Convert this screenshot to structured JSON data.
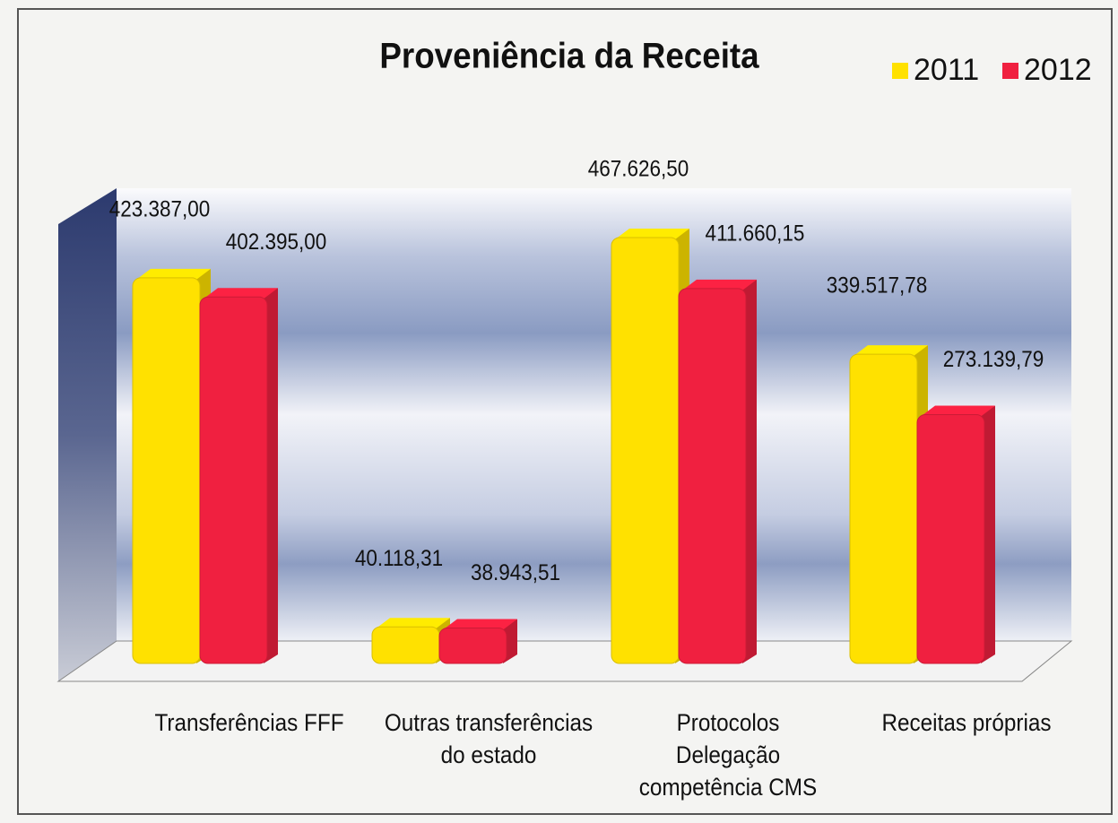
{
  "chart_data": {
    "type": "bar3d",
    "title": "Proveniência da Receita",
    "categories": [
      "Transferências FFF",
      "Outras transferências do estado",
      "Protocolos Delegação competência CMS",
      "Receitas próprias"
    ],
    "series": [
      {
        "name": "2011",
        "color": "#ffe100",
        "values": [
          423387.0,
          40118.31,
          467626.5,
          339517.78
        ],
        "value_labels": [
          "423.387,00",
          "40.118,31",
          "467.626,50",
          "339.517,78"
        ]
      },
      {
        "name": "2012",
        "color": "#f02040",
        "values": [
          402395.0,
          38943.51,
          411660.15,
          273139.79
        ],
        "value_labels": [
          "402.395,00",
          "38.943,51",
          "411.660,15",
          "273.139,79"
        ]
      }
    ],
    "legend": "top-right"
  }
}
